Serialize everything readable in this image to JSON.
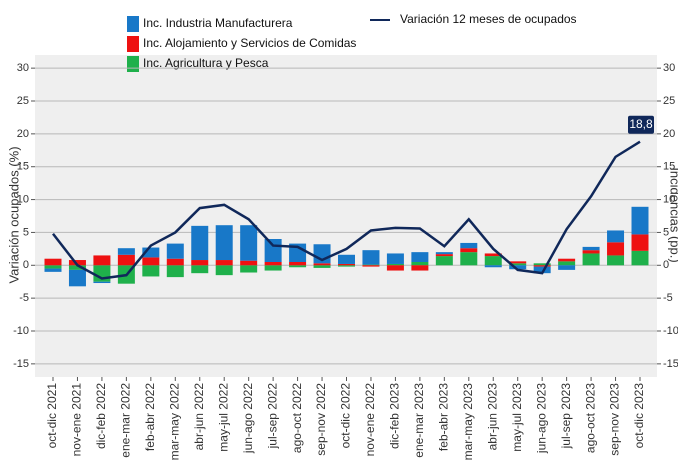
{
  "chart_data": {
    "type": "bar",
    "stacked": true,
    "y_label": "Variación ocupados (%)",
    "y2_label": "Incidencias (pp.)",
    "categories": [
      "oct-dic 2021",
      "nov-ene 2021",
      "dic-feb 2022",
      "ene-mar 2022",
      "feb-abr 2022",
      "mar-may 2022",
      "abr-jun 2022",
      "may-jul 2022",
      "jun-ago 2022",
      "jul-sep 2022",
      "ago-oct 2022",
      "sep-nov 2022",
      "oct-dic 2022",
      "nov-ene 2022",
      "dic-feb 2023",
      "ene-mar 2023",
      "feb-abr 2023",
      "mar-may 2023",
      "abr-jun 2023",
      "may-jul 2023",
      "jun-ago 2023",
      "jul-sep 2023",
      "ago-oct 2023",
      "sep-nov 2023",
      "oct-dic 2023"
    ],
    "series": [
      {
        "name": "Inc. Agricultura y Pesca",
        "color": "#1fb04b",
        "axis": "y2",
        "values": [
          -0.5,
          -0.7,
          -2.5,
          -2.8,
          -1.7,
          -1.8,
          -1.2,
          -1.5,
          -1.1,
          -0.8,
          -0.3,
          -0.4,
          -0.2,
          0.1,
          0.2,
          0.5,
          1.4,
          2.0,
          1.4,
          0.3,
          0.3,
          0.6,
          1.8,
          1.5,
          2.2
        ]
      },
      {
        "name": "Inc. Alojamiento y Servicios de Comidas",
        "color": "#ee1111",
        "axis": "y2",
        "values": [
          1.0,
          0.8,
          1.5,
          1.6,
          1.2,
          1.0,
          0.8,
          0.8,
          0.7,
          0.5,
          0.5,
          0.3,
          0.2,
          -0.2,
          -0.8,
          -0.8,
          0.3,
          0.6,
          0.4,
          0.3,
          -0.2,
          0.4,
          0.5,
          2.0,
          2.5
        ]
      },
      {
        "name": "Inc. Industria Manufacturera",
        "color": "#1878c8",
        "axis": "y2",
        "values": [
          -0.5,
          -2.5,
          -0.2,
          1.0,
          1.5,
          2.3,
          5.2,
          5.3,
          5.4,
          3.5,
          2.8,
          2.9,
          1.4,
          2.2,
          1.6,
          1.5,
          0.3,
          0.8,
          -0.3,
          -0.6,
          -1.0,
          -0.7,
          0.5,
          1.8,
          4.2
        ]
      },
      {
        "name": "Variación 12 meses de ocupados",
        "type": "line",
        "color": "#10285a",
        "values": [
          4.8,
          0.0,
          -2.0,
          -1.5,
          3.0,
          5.0,
          8.7,
          9.2,
          7.0,
          3.0,
          2.8,
          0.8,
          2.5,
          5.3,
          5.7,
          5.6,
          2.9,
          7.0,
          2.5,
          -0.7,
          -1.2,
          5.5,
          10.5,
          16.5,
          18.8
        ],
        "value_labels": [
          null,
          null,
          null,
          null,
          null,
          null,
          null,
          null,
          null,
          null,
          null,
          null,
          null,
          null,
          null,
          null,
          null,
          null,
          null,
          null,
          null,
          null,
          null,
          null,
          "18,8"
        ]
      }
    ],
    "ylim": [
      -17,
      32
    ],
    "yticks": [
      -15,
      -10,
      -5,
      0,
      5,
      10,
      15,
      20,
      25,
      30
    ],
    "y2lim": [
      -17,
      32
    ],
    "y2ticks": [
      -15,
      -10,
      -5,
      0,
      5,
      10,
      15,
      20,
      25,
      30
    ],
    "grid": true
  }
}
